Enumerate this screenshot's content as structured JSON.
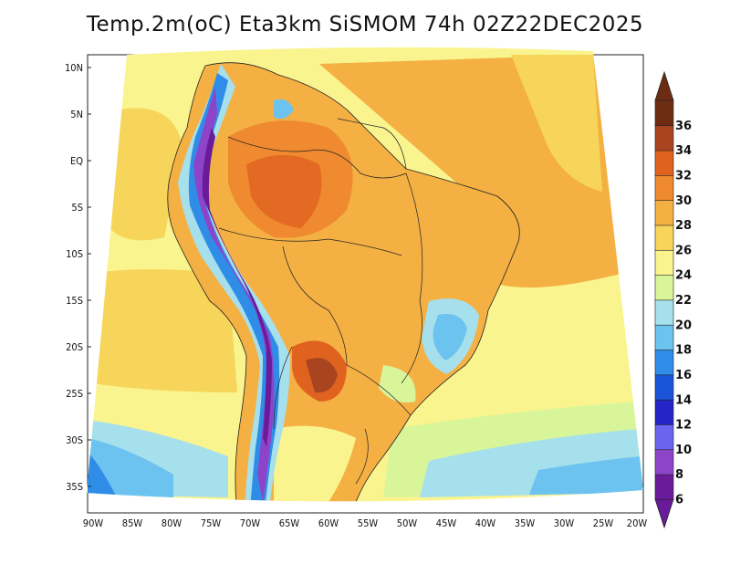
{
  "title": "Temp.2m(oC) Eta3km SiSMOM 74h 02Z22DEC2025",
  "map": {
    "lat_labels": [
      "10N",
      "5N",
      "EQ",
      "5S",
      "10S",
      "15S",
      "20S",
      "25S",
      "30S",
      "35S"
    ],
    "lon_labels": [
      "90W",
      "85W",
      "80W",
      "75W",
      "70W",
      "65W",
      "60W",
      "55W",
      "50W",
      "45W",
      "40W",
      "35W",
      "30W",
      "25W",
      "20W"
    ]
  },
  "legend": {
    "units": "oC",
    "levels": [
      "6",
      "8",
      "10",
      "12",
      "14",
      "16",
      "18",
      "20",
      "22",
      "24",
      "26",
      "28",
      "30",
      "32",
      "34",
      "36"
    ],
    "colors": [
      "#6a1b9a",
      "#8e44c9",
      "#6b64f0",
      "#2424c8",
      "#1a54d8",
      "#2f8de8",
      "#6cc3f0",
      "#a6e0ec",
      "#d8f59a",
      "#f9f48e",
      "#f6d55a",
      "#f4b043",
      "#ef8a30",
      "#e0621f",
      "#a84520",
      "#6e2d12"
    ]
  }
}
